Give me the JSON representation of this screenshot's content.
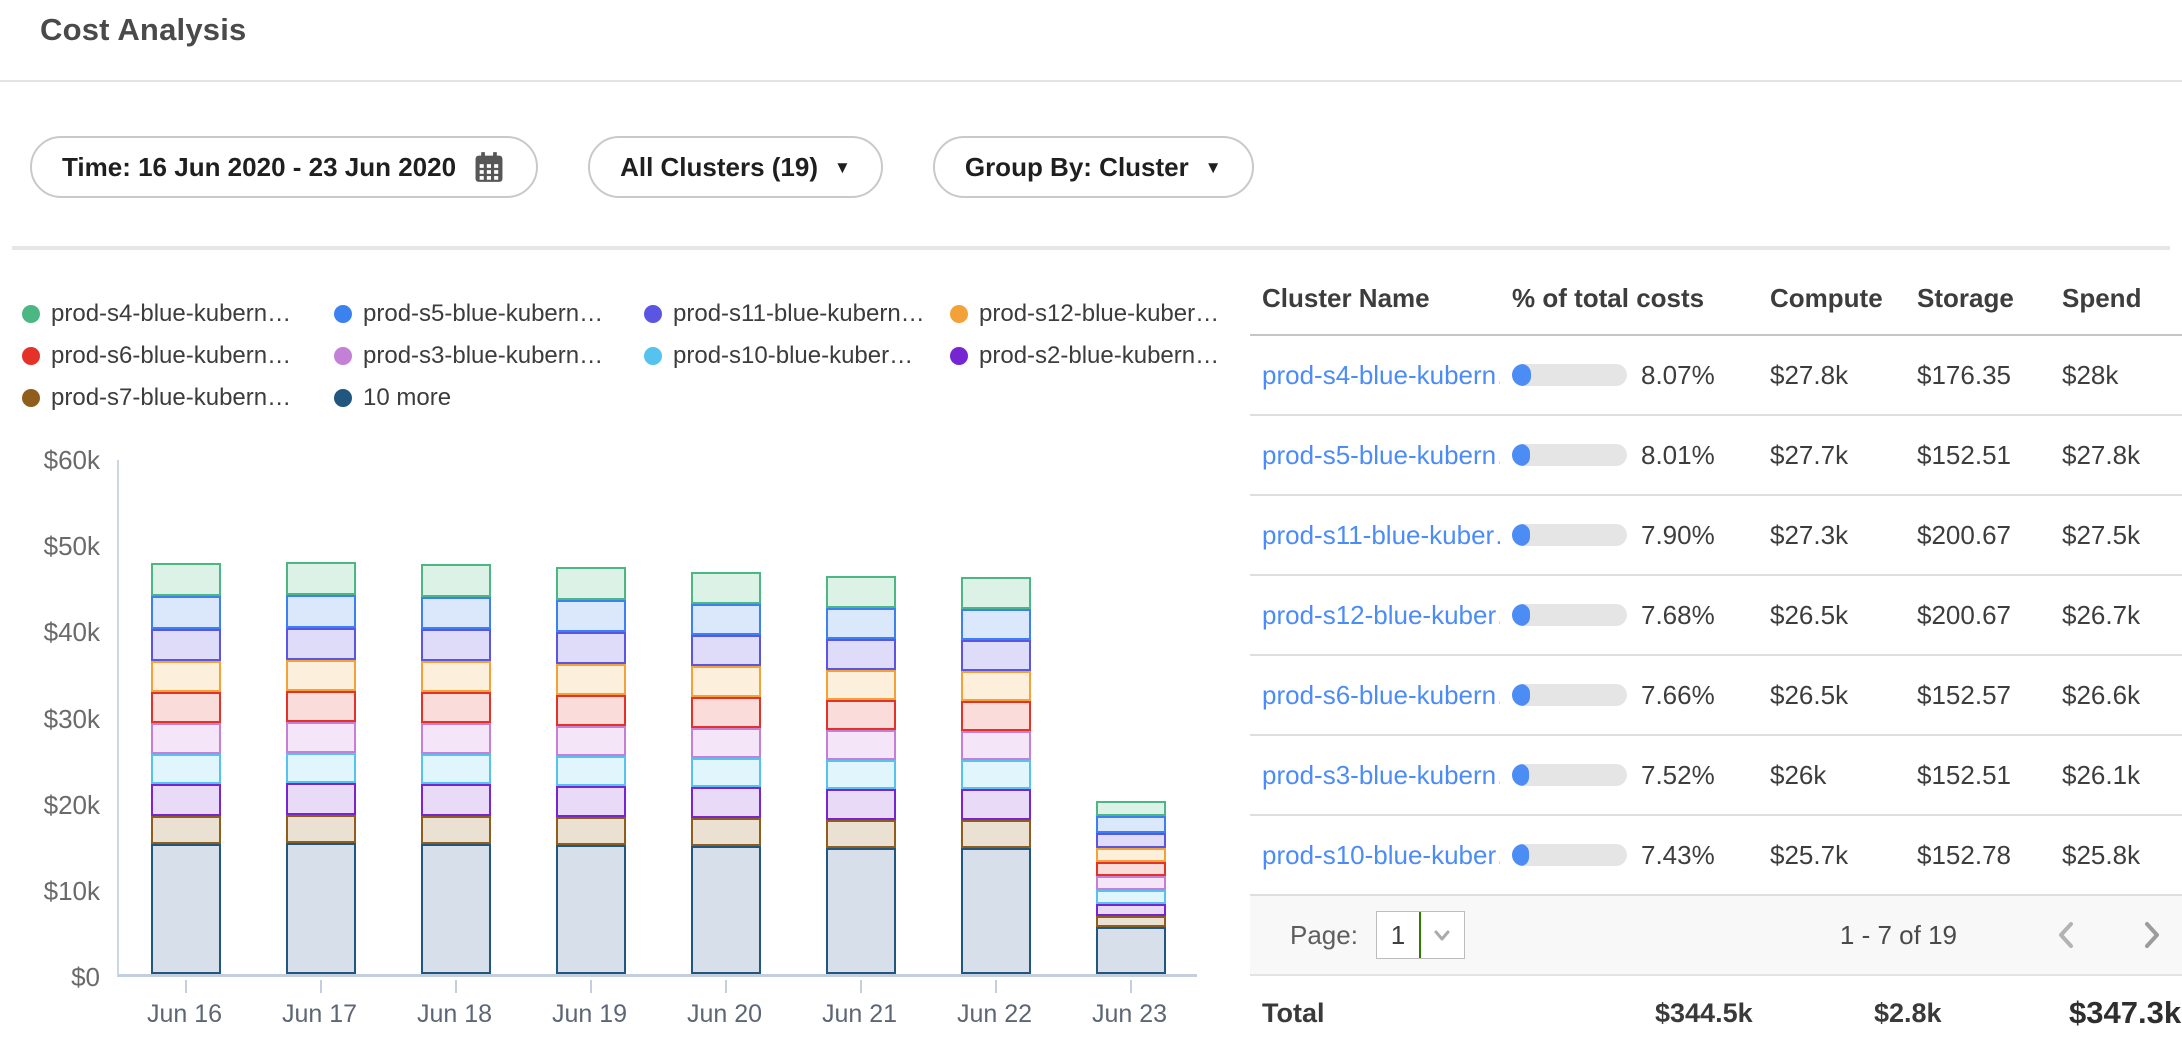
{
  "page": {
    "title": "Cost Analysis"
  },
  "filters": {
    "time": {
      "label": "Time: 16 Jun 2020 - 23 Jun 2020",
      "icon": "calendar-icon"
    },
    "clusters": {
      "label": "All Clusters (19)",
      "icon": "chevron-down-icon"
    },
    "group_by": {
      "label": "Group By: Cluster",
      "icon": "chevron-down-icon"
    }
  },
  "legend": [
    {
      "label": "prod-s4-blue-kubern…",
      "color": "#4cb782"
    },
    {
      "label": "prod-s5-blue-kubern…",
      "color": "#3b82f0"
    },
    {
      "label": "prod-s11-blue-kubern…",
      "color": "#5b55e3"
    },
    {
      "label": "prod-s12-blue-kuber…",
      "color": "#f2a238"
    },
    {
      "label": "prod-s6-blue-kubern…",
      "color": "#e53228"
    },
    {
      "label": "prod-s3-blue-kubern…",
      "color": "#c47fd6"
    },
    {
      "label": "prod-s10-blue-kuber…",
      "color": "#55c3ee"
    },
    {
      "label": "prod-s2-blue-kubern…",
      "color": "#7525d1"
    },
    {
      "label": "prod-s7-blue-kubern…",
      "color": "#8f5e1d"
    },
    {
      "label": "10 more",
      "color": "#21567f"
    }
  ],
  "chart_data": {
    "type": "bar",
    "stacked": true,
    "unit": "USD thousands",
    "categories": [
      "Jun 16",
      "Jun 17",
      "Jun 18",
      "Jun 19",
      "Jun 20",
      "Jun 21",
      "Jun 22",
      "Jun 23"
    ],
    "y_ticks": [
      "$60k",
      "$50k",
      "$40k",
      "$30k",
      "$20k",
      "$10k",
      "$0"
    ],
    "ylim": [
      0,
      60
    ],
    "grid": false,
    "legend_position": "top",
    "series": [
      {
        "name": "10 more",
        "border": "#21567f",
        "fill": "#d7e0ea",
        "values": [
          15.1,
          15.2,
          15.1,
          15.0,
          14.8,
          14.6,
          14.6,
          5.4
        ]
      },
      {
        "name": "prod-s7-blue-kubern…",
        "border": "#8f5e1d",
        "fill": "#eae1d2",
        "values": [
          3.3,
          3.3,
          3.3,
          3.25,
          3.2,
          3.2,
          3.2,
          1.3
        ]
      },
      {
        "name": "prod-s2-blue-kubern…",
        "border": "#7525d1",
        "fill": "#e9daf7",
        "values": [
          3.7,
          3.7,
          3.7,
          3.65,
          3.6,
          3.55,
          3.55,
          1.4
        ]
      },
      {
        "name": "prod-s10-blue-kuber…",
        "border": "#55c3ee",
        "fill": "#e0f5fc",
        "values": [
          3.5,
          3.5,
          3.5,
          3.5,
          3.4,
          3.4,
          3.4,
          1.6
        ]
      },
      {
        "name": "prod-s3-blue-kubern…",
        "border": "#c47fd6",
        "fill": "#f4e6f8",
        "values": [
          3.55,
          3.55,
          3.55,
          3.5,
          3.45,
          3.45,
          3.4,
          1.65
        ]
      },
      {
        "name": "prod-s6-blue-kubern…",
        "border": "#e53228",
        "fill": "#fadddb",
        "values": [
          3.65,
          3.65,
          3.6,
          3.6,
          3.55,
          3.5,
          3.5,
          1.65
        ]
      },
      {
        "name": "prod-s12-blue-kuber…",
        "border": "#f2a238",
        "fill": "#fcefdc",
        "values": [
          3.65,
          3.65,
          3.65,
          3.6,
          3.55,
          3.5,
          3.5,
          1.65
        ]
      },
      {
        "name": "prod-s11-blue-kubern…",
        "border": "#5b55e3",
        "fill": "#dedcf9",
        "values": [
          3.75,
          3.75,
          3.7,
          3.7,
          3.65,
          3.6,
          3.6,
          1.75
        ]
      },
      {
        "name": "prod-s5-blue-kubern…",
        "border": "#3b82f0",
        "fill": "#dbe7fb",
        "values": [
          3.8,
          3.8,
          3.75,
          3.75,
          3.65,
          3.6,
          3.6,
          2.0
        ]
      },
      {
        "name": "prod-s4-blue-kubern…",
        "border": "#4cb782",
        "fill": "#dcf2e6",
        "values": [
          3.85,
          3.85,
          3.8,
          3.8,
          3.75,
          3.7,
          3.7,
          1.7
        ]
      }
    ]
  },
  "table": {
    "columns": [
      "Cluster Name",
      "% of total costs",
      "Compute",
      "Storage",
      "Spend"
    ],
    "rows": [
      {
        "name": "prod-s4-blue-kubern…",
        "pct": "8.07%",
        "pct_value": 8.07,
        "compute": "$27.8k",
        "storage": "$176.35",
        "spend": "$28k"
      },
      {
        "name": "prod-s5-blue-kubern…",
        "pct": "8.01%",
        "pct_value": 8.01,
        "compute": "$27.7k",
        "storage": "$152.51",
        "spend": "$27.8k"
      },
      {
        "name": "prod-s11-blue-kuber…",
        "pct": "7.90%",
        "pct_value": 7.9,
        "compute": "$27.3k",
        "storage": "$200.67",
        "spend": "$27.5k"
      },
      {
        "name": "prod-s12-blue-kuber…",
        "pct": "7.68%",
        "pct_value": 7.68,
        "compute": "$26.5k",
        "storage": "$200.67",
        "spend": "$26.7k"
      },
      {
        "name": "prod-s6-blue-kubern…",
        "pct": "7.66%",
        "pct_value": 7.66,
        "compute": "$26.5k",
        "storage": "$152.57",
        "spend": "$26.6k"
      },
      {
        "name": "prod-s3-blue-kubern…",
        "pct": "7.52%",
        "pct_value": 7.52,
        "compute": "$26k",
        "storage": "$152.51",
        "spend": "$26.1k"
      },
      {
        "name": "prod-s10-blue-kuber…",
        "pct": "7.43%",
        "pct_value": 7.43,
        "compute": "$25.7k",
        "storage": "$152.78",
        "spend": "$25.8k"
      }
    ],
    "pagination": {
      "page_label": "Page:",
      "page_value": "1",
      "range": "1 - 7 of 19"
    },
    "total": {
      "label": "Total",
      "compute": "$344.5k",
      "storage": "$2.8k",
      "spend": "$347.3k"
    }
  },
  "colors": {
    "link": "#4b8cf5",
    "progress_fill": "#4b8cf5",
    "progress_track": "#e5e5e5",
    "axis": "#c3cedf",
    "select_accent_green": "#2f7d00"
  }
}
